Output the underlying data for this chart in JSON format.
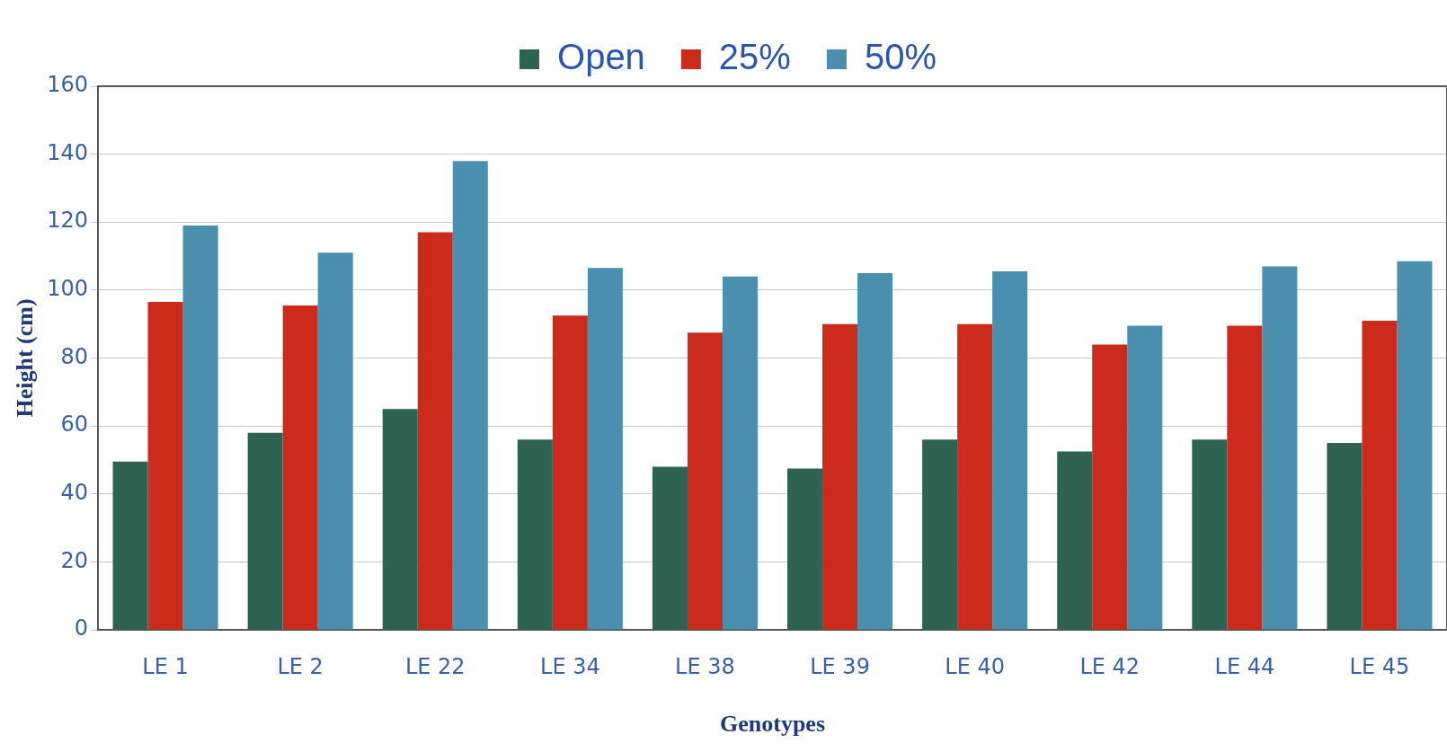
{
  "chart_data": {
    "type": "bar",
    "xlabel": "Genotypes",
    "ylabel": "Height (cm)",
    "categories": [
      "LE 1",
      "LE 2",
      "LE 22",
      "LE 34",
      "LE 38",
      "LE 39",
      "LE 40",
      "LE 42",
      "LE 44",
      "LE 45"
    ],
    "series": [
      {
        "name": "Open",
        "color": "#2e6352",
        "values": [
          49.5,
          58,
          65,
          56,
          48,
          47.5,
          56,
          52.5,
          56,
          55
        ]
      },
      {
        "name": "25%",
        "color": "#cc2a1a",
        "values": [
          96.5,
          95.5,
          117,
          92.5,
          87.5,
          90,
          90,
          84,
          89.5,
          91
        ]
      },
      {
        "name": "50%",
        "color": "#4a8fae",
        "values": [
          119,
          111,
          138,
          106.5,
          104,
          105,
          105.5,
          89.5,
          107,
          108.5
        ]
      }
    ],
    "ylim": [
      0,
      160
    ],
    "yticks": [
      0,
      20,
      40,
      60,
      80,
      100,
      120,
      140,
      160
    ],
    "grid": "y",
    "legend": "top"
  }
}
